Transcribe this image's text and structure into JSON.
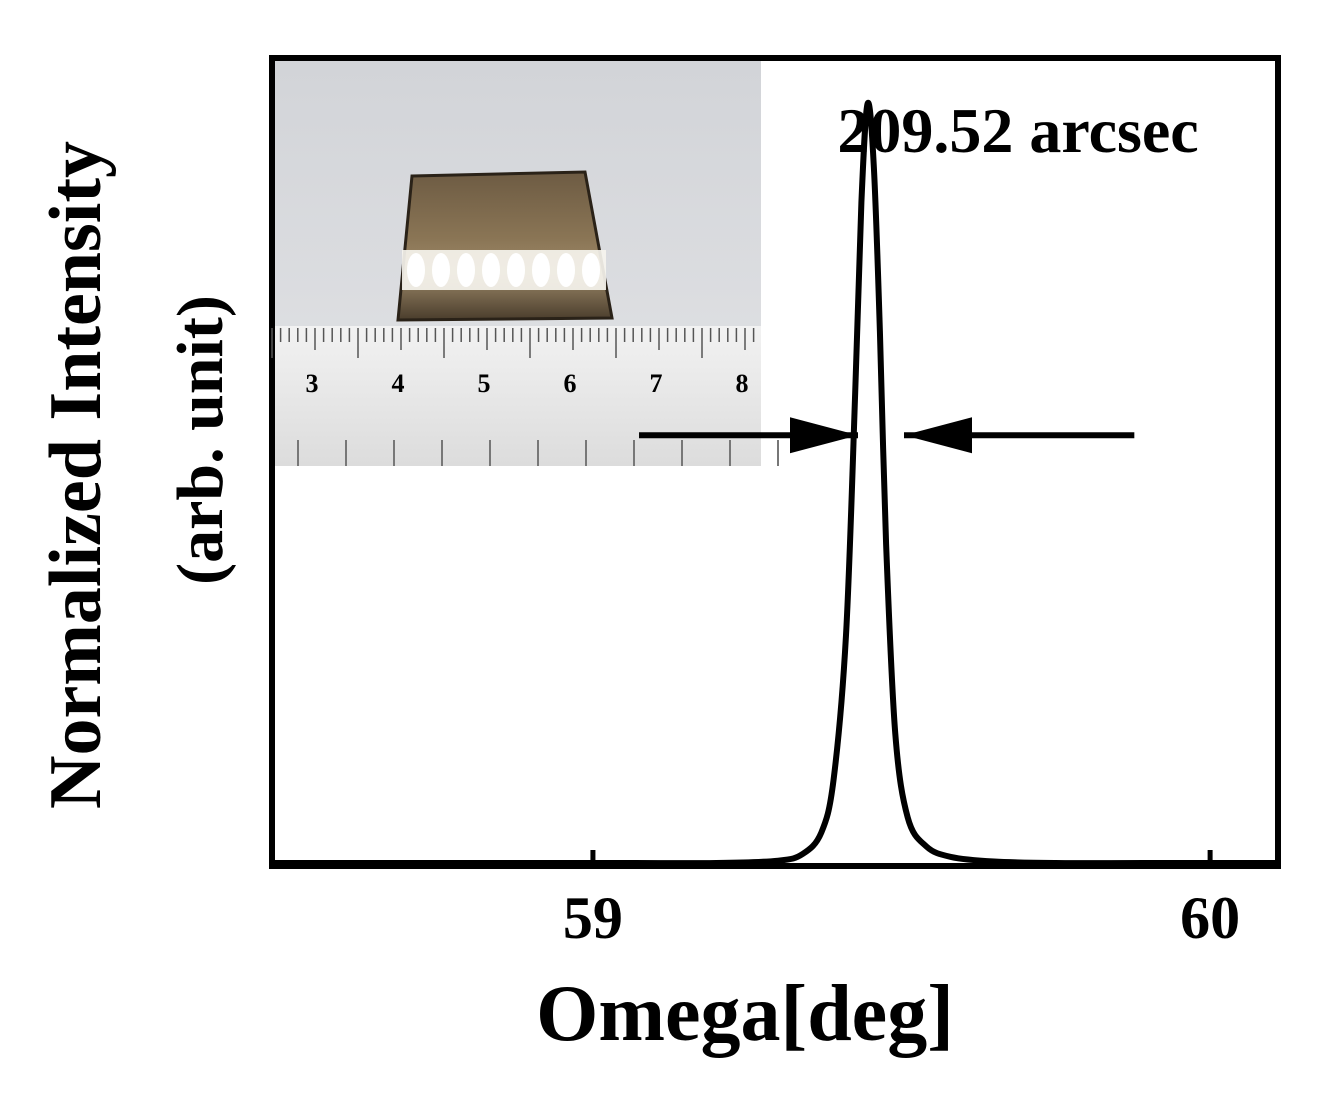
{
  "chart_data": {
    "type": "line",
    "title": "",
    "xlabel": "Omega[deg]",
    "ylabel_line1": "Normalized Intensity",
    "ylabel_line2": "(arb. unit)",
    "xlim": [
      58.48,
      60.11
    ],
    "ylim": [
      0,
      1.06
    ],
    "x_ticks": [
      59,
      60
    ],
    "x_tick_labels": [
      "59",
      "60"
    ],
    "y_ticks_shown": false,
    "grid": false,
    "series": [
      {
        "x": [
          58.48,
          59.0,
          59.2,
          59.3,
          59.34,
          59.37,
          59.39,
          59.41,
          59.425,
          59.435,
          59.445,
          59.455,
          59.465,
          59.475,
          59.49,
          59.51,
          59.54,
          59.58,
          59.65,
          59.75,
          59.9,
          60.11
        ],
        "y": [
          0.0,
          0.0,
          0.0,
          0.003,
          0.012,
          0.04,
          0.11,
          0.3,
          0.62,
          0.87,
          1.0,
          0.92,
          0.7,
          0.42,
          0.17,
          0.06,
          0.022,
          0.008,
          0.002,
          0.0,
          0.0,
          0.0
        ]
      }
    ],
    "annotations": {
      "fwhm_label": "209.52 arcsec",
      "fwhm_range": [
        59.18,
        59.78
      ],
      "fwhm_level": 0.5
    },
    "inset": {
      "description_type": "photo",
      "ruler_labels": [
        "3",
        "4",
        "5",
        "6",
        "7",
        "8"
      ]
    }
  }
}
